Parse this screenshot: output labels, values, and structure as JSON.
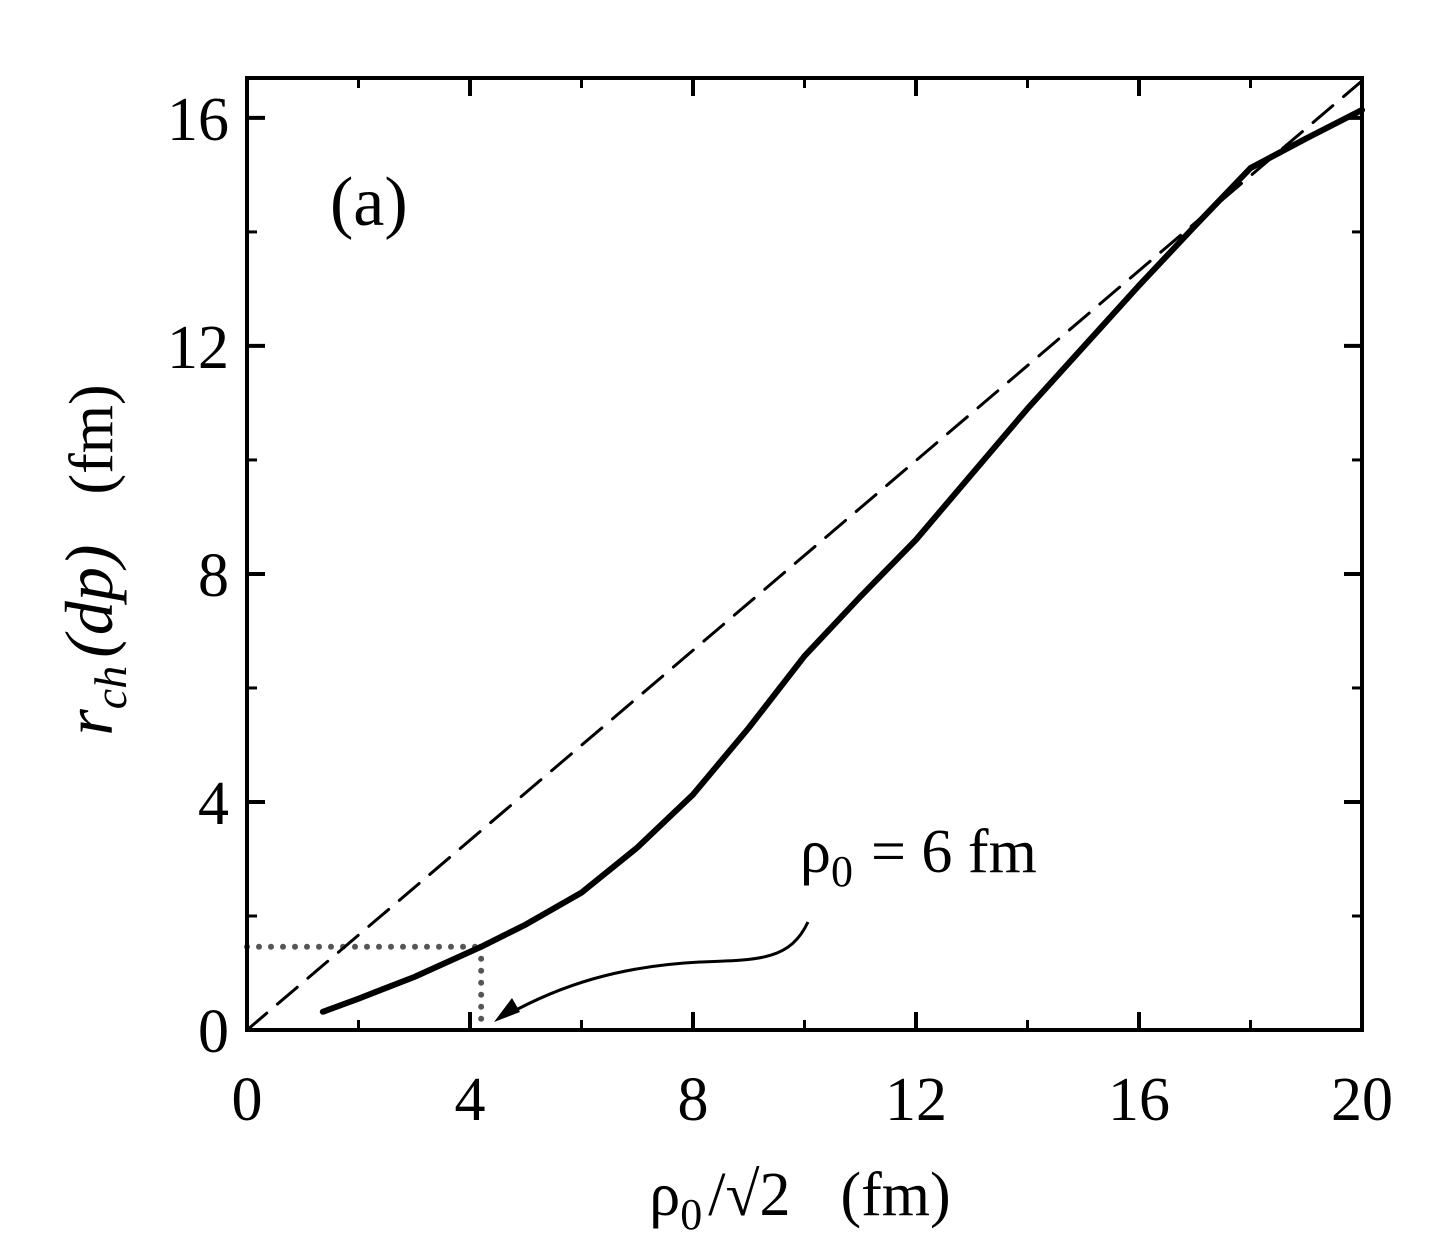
{
  "chart_data": {
    "type": "line",
    "panel_label": "(a)",
    "xlabel": {
      "symbol": "ρ",
      "sub": "0",
      "rest": "/√2",
      "unit": "(fm)"
    },
    "ylabel": {
      "symbol": "r",
      "sub": "ch",
      "rest": "(dp)",
      "unit": "(fm)"
    },
    "xlim": [
      0,
      20
    ],
    "ylim": [
      0,
      16.7
    ],
    "xticks": [
      0,
      4,
      8,
      12,
      16,
      20
    ],
    "yticks": [
      0,
      4,
      8,
      12,
      16
    ],
    "minor_xticks": [
      2,
      6,
      10,
      14,
      18
    ],
    "minor_yticks": [
      2,
      6,
      10,
      14
    ],
    "series": [
      {
        "color": "#000000",
        "style": "solid",
        "x": [
          1.36,
          2,
          3,
          4.2,
          5,
          6,
          7,
          8,
          9,
          10,
          11,
          12,
          13,
          14,
          15,
          16,
          17,
          18,
          19,
          20
        ],
        "values": [
          0.32,
          0.55,
          0.93,
          1.46,
          1.85,
          2.41,
          3.2,
          4.13,
          5.3,
          6.56,
          7.6,
          8.6,
          9.75,
          10.9,
          11.98,
          13.06,
          14.1,
          15.12,
          15.64,
          16.14
        ]
      },
      {
        "color": "#000000",
        "style": "dashed",
        "x": [
          0,
          20
        ],
        "values": [
          0,
          16.65
        ]
      }
    ],
    "marker": {
      "x": 4.2,
      "y": 1.46,
      "color": "#555555"
    },
    "annotation": {
      "symbol": "ρ",
      "sub": "0",
      "rest": "= 6 fm"
    }
  }
}
